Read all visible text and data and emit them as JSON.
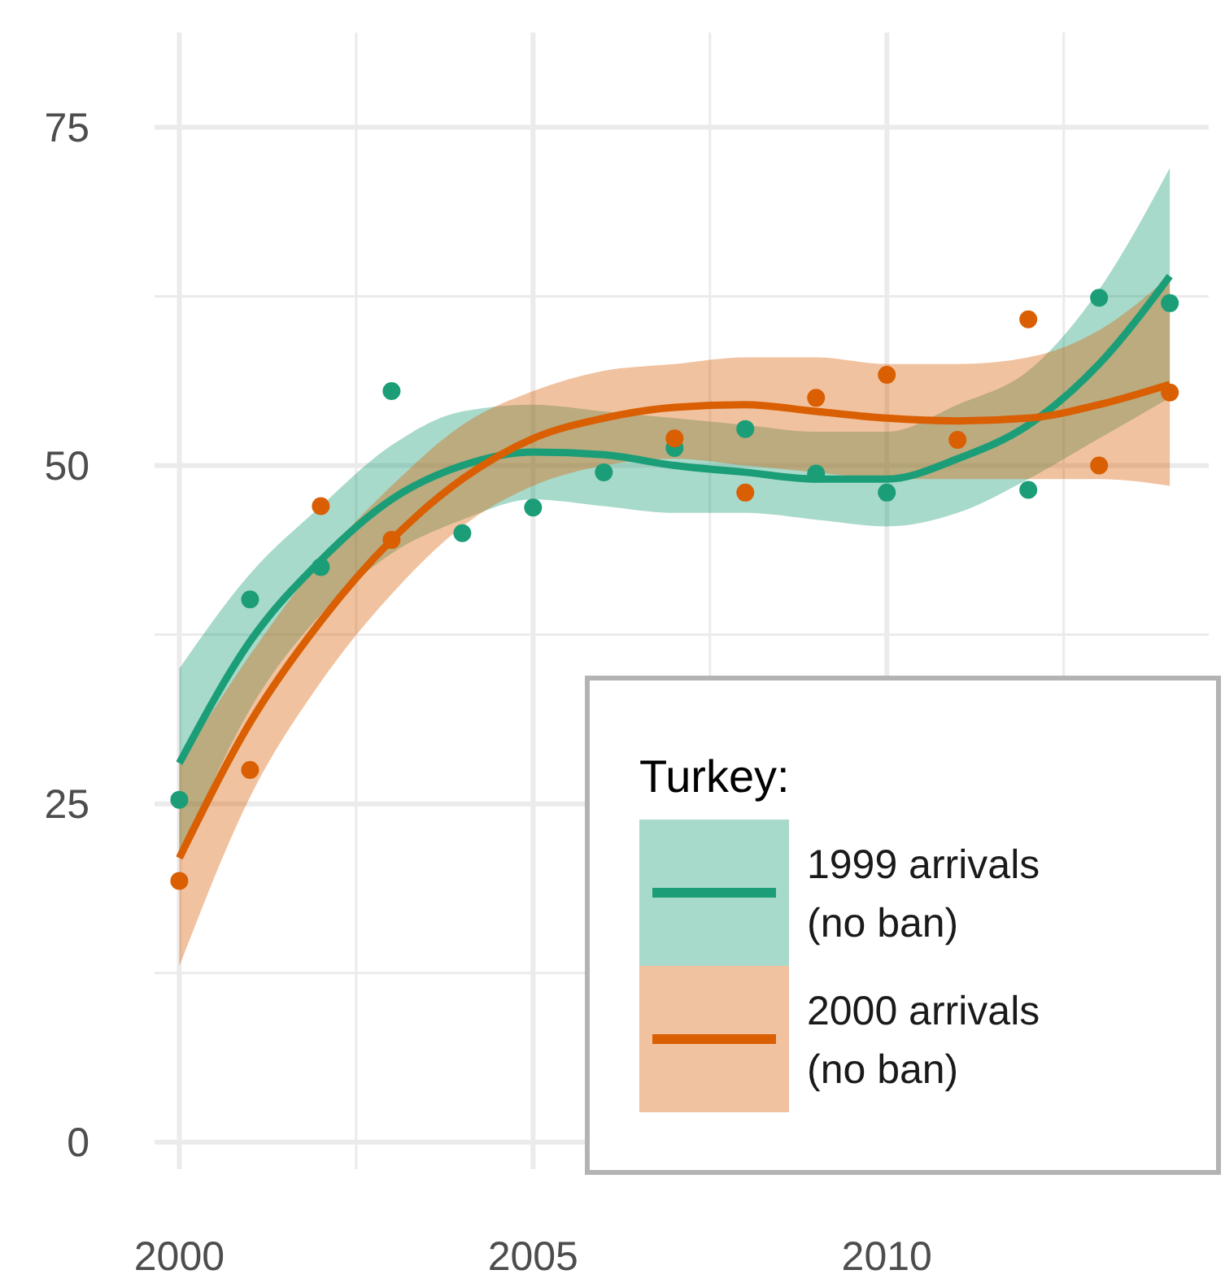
{
  "chart_data": {
    "type": "scatter",
    "legend_title": "Turkey:",
    "legend": "bottom right",
    "grid": true,
    "marker": "circle",
    "line_style": "solid",
    "x": [
      2000,
      2001,
      2002,
      2003,
      2004,
      2005,
      2006,
      2007,
      2008,
      2009,
      2010,
      2011,
      2012,
      2013,
      2014
    ],
    "xlim": [
      1999.65,
      2014.55
    ],
    "xticks": [
      {
        "value": 2000,
        "label": "2000"
      },
      {
        "value": 2002.5,
        "label": null
      },
      {
        "value": 2005,
        "label": "2005"
      },
      {
        "value": 2007.5,
        "label": null
      },
      {
        "value": 2010,
        "label": "2010"
      },
      {
        "value": 2012.5,
        "label": null
      }
    ],
    "ylim": [
      -2,
      82
    ],
    "yticks": [
      0,
      {
        "value": 12.5,
        "label": null
      },
      25,
      {
        "value": 37.5,
        "label": null
      },
      50,
      {
        "value": 62.5,
        "label": null
      },
      75
    ],
    "series": [
      {
        "color": "#1b9e77",
        "values": [
          25.3,
          40.1,
          42.5,
          55.5,
          45,
          46.9,
          49.5,
          51.3,
          52.7,
          49.4,
          48,
          null,
          48.2,
          62.4,
          62
        ]
      },
      {
        "color": "#d95f02",
        "values": [
          19.3,
          27.5,
          47,
          44.5,
          null,
          null,
          null,
          52,
          48,
          55,
          56.7,
          51.9,
          60.8,
          50,
          55.4
        ]
      },
      {
        "type": "line",
        "marker": "none",
        "name": "1999 arrivals (no ban)",
        "color": "#1b9e77",
        "values": [
          28,
          37,
          43,
          47.5,
          50,
          51,
          50.8,
          50,
          49.5,
          49,
          49,
          50.5,
          53,
          57.5,
          64
        ],
        "lower": [
          21,
          32,
          39,
          43.5,
          46,
          47.5,
          47,
          46.5,
          46.5,
          46,
          45.5,
          46.5,
          49,
          52,
          55
        ],
        "upper": [
          35,
          42,
          47,
          51.5,
          54,
          54.5,
          54,
          53.5,
          53,
          52.5,
          52.5,
          54.5,
          57,
          63,
          72
        ]
      },
      {
        "type": "line",
        "marker": "none",
        "name": "2000 arrivals (no ban)",
        "color": "#d95f02",
        "values": [
          21,
          31,
          38.5,
          44.5,
          49,
          52,
          53.5,
          54.3,
          54.5,
          54,
          53.5,
          53.3,
          53.5,
          54.5,
          56
        ],
        "lower": [
          13,
          25.5,
          34,
          40.5,
          45.5,
          48.5,
          50,
          50.5,
          50,
          49.5,
          49,
          49,
          49,
          49,
          48.5
        ],
        "upper": [
          28,
          36,
          43,
          48.5,
          53,
          55.5,
          57,
          57.5,
          58,
          58,
          57.5,
          57.5,
          58,
          60,
          64
        ]
      }
    ]
  }
}
